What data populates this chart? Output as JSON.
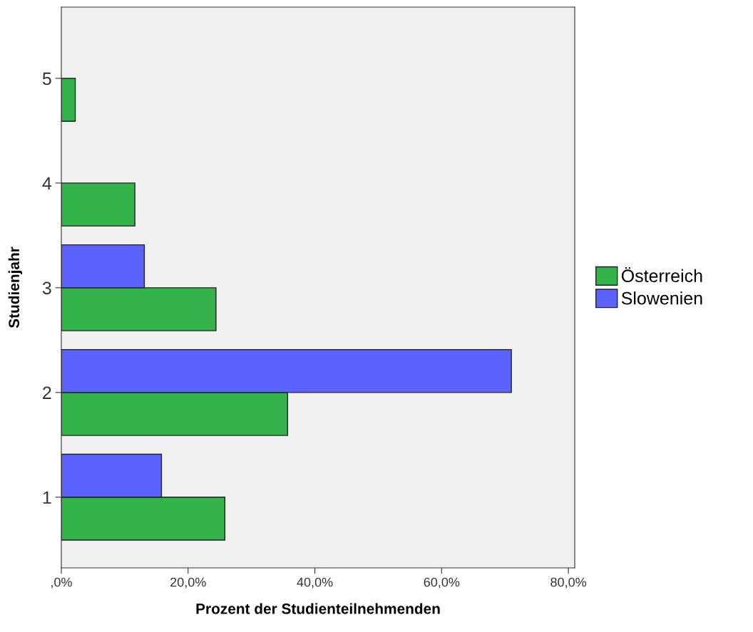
{
  "chart_data": {
    "type": "bar",
    "orientation": "horizontal",
    "xlabel": "Prozent der Studienteilnehmenden",
    "ylabel": "Studienjahr",
    "categories": [
      "5",
      "4",
      "3",
      "2",
      "1"
    ],
    "series": [
      {
        "name": "Österreich",
        "color": "#33b34a",
        "values": [
          2.2,
          11.6,
          24.4,
          35.7,
          25.8
        ]
      },
      {
        "name": "Slowenien",
        "color": "#5b62fe",
        "values": [
          null,
          null,
          13.1,
          71.0,
          15.8
        ]
      }
    ],
    "xlim": [
      0,
      81
    ],
    "xticks": [
      {
        "value": 0,
        "label": ",0%"
      },
      {
        "value": 20,
        "label": "20,0%"
      },
      {
        "value": 40,
        "label": "40,0%"
      },
      {
        "value": 60,
        "label": "60,0%"
      },
      {
        "value": 80,
        "label": "80,0%"
      }
    ],
    "grid": false,
    "legend": "right"
  }
}
